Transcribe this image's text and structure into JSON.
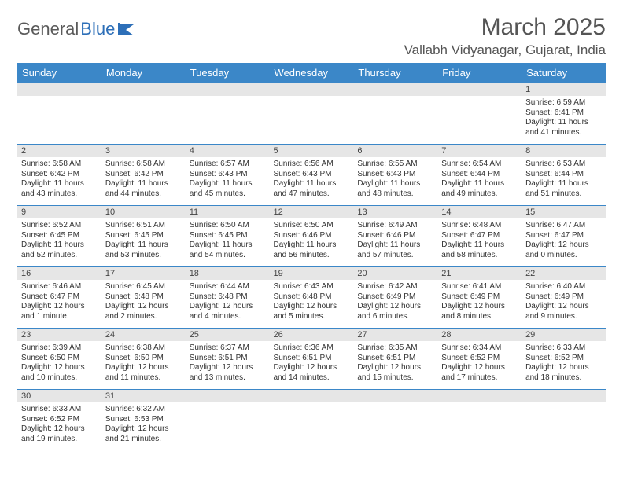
{
  "logo": {
    "text1": "General",
    "text2": "Blue"
  },
  "header": {
    "month_title": "March 2025",
    "location": "Vallabh Vidyanagar, Gujarat, India"
  },
  "colors": {
    "header_bg": "#3b87c8",
    "header_fg": "#ffffff",
    "daynum_bg": "#e6e6e6",
    "cell_border": "#3b87c8",
    "logo_gray": "#5a5a5a",
    "logo_blue": "#2d6fb8"
  },
  "day_headers": [
    "Sunday",
    "Monday",
    "Tuesday",
    "Wednesday",
    "Thursday",
    "Friday",
    "Saturday"
  ],
  "weeks": [
    [
      {
        "n": "",
        "empty": true
      },
      {
        "n": "",
        "empty": true
      },
      {
        "n": "",
        "empty": true
      },
      {
        "n": "",
        "empty": true
      },
      {
        "n": "",
        "empty": true
      },
      {
        "n": "",
        "empty": true
      },
      {
        "n": "1",
        "sunrise": "Sunrise: 6:59 AM",
        "sunset": "Sunset: 6:41 PM",
        "daylight": "Daylight: 11 hours and 41 minutes."
      }
    ],
    [
      {
        "n": "2",
        "sunrise": "Sunrise: 6:58 AM",
        "sunset": "Sunset: 6:42 PM",
        "daylight": "Daylight: 11 hours and 43 minutes."
      },
      {
        "n": "3",
        "sunrise": "Sunrise: 6:58 AM",
        "sunset": "Sunset: 6:42 PM",
        "daylight": "Daylight: 11 hours and 44 minutes."
      },
      {
        "n": "4",
        "sunrise": "Sunrise: 6:57 AM",
        "sunset": "Sunset: 6:43 PM",
        "daylight": "Daylight: 11 hours and 45 minutes."
      },
      {
        "n": "5",
        "sunrise": "Sunrise: 6:56 AM",
        "sunset": "Sunset: 6:43 PM",
        "daylight": "Daylight: 11 hours and 47 minutes."
      },
      {
        "n": "6",
        "sunrise": "Sunrise: 6:55 AM",
        "sunset": "Sunset: 6:43 PM",
        "daylight": "Daylight: 11 hours and 48 minutes."
      },
      {
        "n": "7",
        "sunrise": "Sunrise: 6:54 AM",
        "sunset": "Sunset: 6:44 PM",
        "daylight": "Daylight: 11 hours and 49 minutes."
      },
      {
        "n": "8",
        "sunrise": "Sunrise: 6:53 AM",
        "sunset": "Sunset: 6:44 PM",
        "daylight": "Daylight: 11 hours and 51 minutes."
      }
    ],
    [
      {
        "n": "9",
        "sunrise": "Sunrise: 6:52 AM",
        "sunset": "Sunset: 6:45 PM",
        "daylight": "Daylight: 11 hours and 52 minutes."
      },
      {
        "n": "10",
        "sunrise": "Sunrise: 6:51 AM",
        "sunset": "Sunset: 6:45 PM",
        "daylight": "Daylight: 11 hours and 53 minutes."
      },
      {
        "n": "11",
        "sunrise": "Sunrise: 6:50 AM",
        "sunset": "Sunset: 6:45 PM",
        "daylight": "Daylight: 11 hours and 54 minutes."
      },
      {
        "n": "12",
        "sunrise": "Sunrise: 6:50 AM",
        "sunset": "Sunset: 6:46 PM",
        "daylight": "Daylight: 11 hours and 56 minutes."
      },
      {
        "n": "13",
        "sunrise": "Sunrise: 6:49 AM",
        "sunset": "Sunset: 6:46 PM",
        "daylight": "Daylight: 11 hours and 57 minutes."
      },
      {
        "n": "14",
        "sunrise": "Sunrise: 6:48 AM",
        "sunset": "Sunset: 6:47 PM",
        "daylight": "Daylight: 11 hours and 58 minutes."
      },
      {
        "n": "15",
        "sunrise": "Sunrise: 6:47 AM",
        "sunset": "Sunset: 6:47 PM",
        "daylight": "Daylight: 12 hours and 0 minutes."
      }
    ],
    [
      {
        "n": "16",
        "sunrise": "Sunrise: 6:46 AM",
        "sunset": "Sunset: 6:47 PM",
        "daylight": "Daylight: 12 hours and 1 minute."
      },
      {
        "n": "17",
        "sunrise": "Sunrise: 6:45 AM",
        "sunset": "Sunset: 6:48 PM",
        "daylight": "Daylight: 12 hours and 2 minutes."
      },
      {
        "n": "18",
        "sunrise": "Sunrise: 6:44 AM",
        "sunset": "Sunset: 6:48 PM",
        "daylight": "Daylight: 12 hours and 4 minutes."
      },
      {
        "n": "19",
        "sunrise": "Sunrise: 6:43 AM",
        "sunset": "Sunset: 6:48 PM",
        "daylight": "Daylight: 12 hours and 5 minutes."
      },
      {
        "n": "20",
        "sunrise": "Sunrise: 6:42 AM",
        "sunset": "Sunset: 6:49 PM",
        "daylight": "Daylight: 12 hours and 6 minutes."
      },
      {
        "n": "21",
        "sunrise": "Sunrise: 6:41 AM",
        "sunset": "Sunset: 6:49 PM",
        "daylight": "Daylight: 12 hours and 8 minutes."
      },
      {
        "n": "22",
        "sunrise": "Sunrise: 6:40 AM",
        "sunset": "Sunset: 6:49 PM",
        "daylight": "Daylight: 12 hours and 9 minutes."
      }
    ],
    [
      {
        "n": "23",
        "sunrise": "Sunrise: 6:39 AM",
        "sunset": "Sunset: 6:50 PM",
        "daylight": "Daylight: 12 hours and 10 minutes."
      },
      {
        "n": "24",
        "sunrise": "Sunrise: 6:38 AM",
        "sunset": "Sunset: 6:50 PM",
        "daylight": "Daylight: 12 hours and 11 minutes."
      },
      {
        "n": "25",
        "sunrise": "Sunrise: 6:37 AM",
        "sunset": "Sunset: 6:51 PM",
        "daylight": "Daylight: 12 hours and 13 minutes."
      },
      {
        "n": "26",
        "sunrise": "Sunrise: 6:36 AM",
        "sunset": "Sunset: 6:51 PM",
        "daylight": "Daylight: 12 hours and 14 minutes."
      },
      {
        "n": "27",
        "sunrise": "Sunrise: 6:35 AM",
        "sunset": "Sunset: 6:51 PM",
        "daylight": "Daylight: 12 hours and 15 minutes."
      },
      {
        "n": "28",
        "sunrise": "Sunrise: 6:34 AM",
        "sunset": "Sunset: 6:52 PM",
        "daylight": "Daylight: 12 hours and 17 minutes."
      },
      {
        "n": "29",
        "sunrise": "Sunrise: 6:33 AM",
        "sunset": "Sunset: 6:52 PM",
        "daylight": "Daylight: 12 hours and 18 minutes."
      }
    ],
    [
      {
        "n": "30",
        "sunrise": "Sunrise: 6:33 AM",
        "sunset": "Sunset: 6:52 PM",
        "daylight": "Daylight: 12 hours and 19 minutes."
      },
      {
        "n": "31",
        "sunrise": "Sunrise: 6:32 AM",
        "sunset": "Sunset: 6:53 PM",
        "daylight": "Daylight: 12 hours and 21 minutes."
      },
      {
        "n": "",
        "empty": true
      },
      {
        "n": "",
        "empty": true
      },
      {
        "n": "",
        "empty": true
      },
      {
        "n": "",
        "empty": true
      },
      {
        "n": "",
        "empty": true
      }
    ]
  ]
}
